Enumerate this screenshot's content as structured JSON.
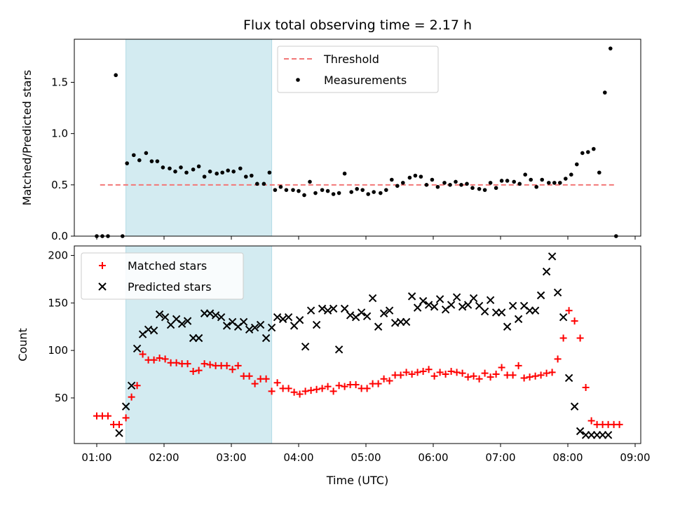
{
  "chart_data": [
    {
      "type": "scatter",
      "title": "Flux total observing time = 2.17 h",
      "xlabel": "",
      "ylabel": "Matched/Predicted stars",
      "xlim": [
        "00:40",
        "09:05"
      ],
      "ylim": [
        0,
        1.92
      ],
      "yticks": [
        0.0,
        0.5,
        1.0,
        1.5
      ],
      "ytick_labels": [
        "0.0",
        "0.5",
        "1.0",
        "1.5"
      ],
      "highlight_span": {
        "start": "01:26",
        "end": "03:36",
        "color": "#d3ebf1"
      },
      "legend": {
        "location": "top-center",
        "entries": [
          "Threshold",
          "Measurements"
        ]
      },
      "series": [
        {
          "name": "Threshold",
          "kind": "line",
          "style": "dashed",
          "color": "#f27777",
          "x": [
            "01:03",
            "08:43"
          ],
          "y": [
            0.5,
            0.5
          ]
        },
        {
          "name": "Measurements",
          "kind": "scatter",
          "color": "#000000",
          "x": [
            "01:00",
            "01:05",
            "01:10",
            "01:17",
            "01:23",
            "01:27",
            "01:33",
            "01:38",
            "01:44",
            "01:49",
            "01:54",
            "01:59",
            "02:05",
            "02:10",
            "02:15",
            "02:20",
            "02:26",
            "02:31",
            "02:36",
            "02:41",
            "02:47",
            "02:52",
            "02:57",
            "03:02",
            "03:08",
            "03:13",
            "03:18",
            "03:23",
            "03:29",
            "03:34",
            "03:39",
            "03:44",
            "03:49",
            "03:55",
            "04:00",
            "04:05",
            "04:10",
            "04:15",
            "04:21",
            "04:26",
            "04:31",
            "04:36",
            "04:41",
            "04:47",
            "04:52",
            "04:57",
            "05:02",
            "05:07",
            "05:13",
            "05:18",
            "05:23",
            "05:28",
            "05:33",
            "05:39",
            "05:44",
            "05:49",
            "05:54",
            "05:59",
            "06:04",
            "06:10",
            "06:15",
            "06:20",
            "06:25",
            "06:30",
            "06:35",
            "06:41",
            "06:46",
            "06:51",
            "06:56",
            "07:01",
            "07:06",
            "07:12",
            "07:17",
            "07:22",
            "07:27",
            "07:32",
            "07:37",
            "07:43",
            "07:48",
            "07:53",
            "07:58",
            "08:03",
            "08:08",
            "08:13",
            "08:18",
            "08:23",
            "08:28",
            "08:33",
            "08:38",
            "08:43"
          ],
          "y": [
            0.0,
            0.0,
            0.0,
            1.57,
            0.0,
            0.71,
            0.79,
            0.74,
            0.81,
            0.73,
            0.73,
            0.67,
            0.66,
            0.63,
            0.67,
            0.62,
            0.65,
            0.68,
            0.58,
            0.63,
            0.61,
            0.62,
            0.64,
            0.63,
            0.66,
            0.58,
            0.59,
            0.51,
            0.51,
            0.62,
            0.45,
            0.48,
            0.45,
            0.45,
            0.44,
            0.4,
            0.53,
            0.42,
            0.45,
            0.44,
            0.41,
            0.42,
            0.61,
            0.43,
            0.46,
            0.45,
            0.41,
            0.43,
            0.42,
            0.45,
            0.55,
            0.49,
            0.52,
            0.57,
            0.59,
            0.58,
            0.5,
            0.55,
            0.48,
            0.52,
            0.5,
            0.53,
            0.5,
            0.51,
            0.47,
            0.46,
            0.45,
            0.52,
            0.47,
            0.54,
            0.54,
            0.53,
            0.51,
            0.6,
            0.55,
            0.48,
            0.55,
            0.52,
            0.52,
            0.52,
            0.56,
            0.6,
            0.7,
            0.81,
            0.82,
            0.85,
            0.62,
            1.4,
            1.83,
            0.0
          ]
        }
      ]
    },
    {
      "type": "scatter",
      "title": "",
      "xlabel": "Time (UTC)",
      "ylabel": "Count",
      "xlim": [
        "00:40",
        "09:05"
      ],
      "ylim": [
        2,
        210
      ],
      "yticks": [
        50,
        100,
        150,
        200
      ],
      "ytick_labels": [
        "50",
        "100",
        "150",
        "200"
      ],
      "xticks": [
        "01:00",
        "02:00",
        "03:00",
        "04:00",
        "05:00",
        "06:00",
        "07:00",
        "08:00",
        "09:00"
      ],
      "highlight_span": {
        "start": "01:26",
        "end": "03:36",
        "color": "#d3ebf1"
      },
      "legend": {
        "location": "top-left",
        "entries": [
          "Matched stars",
          "Predicted stars"
        ]
      },
      "series": [
        {
          "name": "Matched stars",
          "marker": "+",
          "color": "#ff0000",
          "x": [
            "01:00",
            "01:05",
            "01:10",
            "01:15",
            "01:20",
            "01:26",
            "01:31",
            "01:36",
            "01:41",
            "01:46",
            "01:51",
            "01:56",
            "02:01",
            "02:06",
            "02:11",
            "02:16",
            "02:21",
            "02:26",
            "02:31",
            "02:36",
            "02:41",
            "02:46",
            "02:51",
            "02:56",
            "03:01",
            "03:06",
            "03:11",
            "03:16",
            "03:21",
            "03:26",
            "03:31",
            "03:36",
            "03:41",
            "03:46",
            "03:51",
            "03:56",
            "04:01",
            "04:06",
            "04:11",
            "04:16",
            "04:21",
            "04:26",
            "04:31",
            "04:36",
            "04:41",
            "04:46",
            "04:51",
            "04:56",
            "05:01",
            "05:06",
            "05:11",
            "05:16",
            "05:21",
            "05:26",
            "05:31",
            "05:36",
            "05:41",
            "05:46",
            "05:51",
            "05:56",
            "06:01",
            "06:06",
            "06:11",
            "06:16",
            "06:21",
            "06:26",
            "06:31",
            "06:36",
            "06:41",
            "06:46",
            "06:51",
            "06:56",
            "07:01",
            "07:06",
            "07:11",
            "07:16",
            "07:21",
            "07:26",
            "07:31",
            "07:36",
            "07:41",
            "07:46",
            "07:51",
            "07:56",
            "08:01",
            "08:06",
            "08:11",
            "08:16",
            "08:21",
            "08:26",
            "08:31",
            "08:36",
            "08:41",
            "08:46"
          ],
          "y": [
            31,
            31,
            31,
            22,
            22,
            29,
            51,
            63,
            96,
            90,
            90,
            92,
            91,
            87,
            87,
            86,
            86,
            78,
            79,
            86,
            85,
            84,
            84,
            84,
            80,
            84,
            73,
            73,
            65,
            70,
            70,
            57,
            66,
            60,
            60,
            56,
            54,
            57,
            58,
            59,
            60,
            62,
            57,
            63,
            62,
            64,
            64,
            60,
            60,
            65,
            65,
            70,
            68,
            74,
            74,
            77,
            75,
            77,
            78,
            80,
            73,
            77,
            75,
            78,
            77,
            76,
            72,
            73,
            70,
            76,
            72,
            75,
            82,
            74,
            74,
            84,
            71,
            72,
            73,
            74,
            76,
            77,
            91,
            113,
            142,
            131,
            113,
            61,
            26,
            22,
            22,
            22,
            22,
            22
          ]
        },
        {
          "name": "Predicted stars",
          "marker": "x",
          "color": "#000000",
          "x": [
            "01:20",
            "01:26",
            "01:31",
            "01:36",
            "01:41",
            "01:46",
            "01:51",
            "01:56",
            "02:01",
            "02:06",
            "02:11",
            "02:16",
            "02:21",
            "02:26",
            "02:31",
            "02:36",
            "02:41",
            "02:46",
            "02:51",
            "02:56",
            "03:01",
            "03:06",
            "03:11",
            "03:16",
            "03:21",
            "03:26",
            "03:31",
            "03:36",
            "03:41",
            "03:46",
            "03:51",
            "03:56",
            "04:01",
            "04:06",
            "04:11",
            "04:16",
            "04:21",
            "04:26",
            "04:31",
            "04:36",
            "04:41",
            "04:46",
            "04:51",
            "04:56",
            "05:01",
            "05:06",
            "05:11",
            "05:16",
            "05:21",
            "05:26",
            "05:31",
            "05:36",
            "05:41",
            "05:46",
            "05:51",
            "05:56",
            "06:01",
            "06:06",
            "06:11",
            "06:16",
            "06:21",
            "06:26",
            "06:31",
            "06:36",
            "06:41",
            "06:46",
            "06:51",
            "06:56",
            "07:01",
            "07:06",
            "07:11",
            "07:16",
            "07:21",
            "07:26",
            "07:31",
            "07:36",
            "07:41",
            "07:46",
            "07:51",
            "07:56",
            "08:01",
            "08:06",
            "08:11",
            "08:16",
            "08:21",
            "08:26",
            "08:31",
            "08:36"
          ],
          "y": [
            13,
            41,
            63,
            102,
            117,
            122,
            121,
            138,
            135,
            127,
            133,
            128,
            131,
            113,
            113,
            139,
            139,
            137,
            135,
            126,
            130,
            125,
            130,
            122,
            124,
            127,
            113,
            124,
            135,
            133,
            135,
            126,
            132,
            104,
            142,
            127,
            144,
            142,
            144,
            101,
            144,
            137,
            135,
            140,
            136,
            155,
            125,
            139,
            142,
            129,
            130,
            130,
            157,
            145,
            152,
            148,
            146,
            154,
            143,
            148,
            156,
            146,
            148,
            155,
            147,
            141,
            153,
            140,
            140,
            125,
            147,
            133,
            147,
            142,
            142,
            158,
            183,
            199,
            161,
            135,
            71,
            41,
            15,
            11,
            11,
            11,
            11,
            11
          ]
        }
      ]
    }
  ]
}
